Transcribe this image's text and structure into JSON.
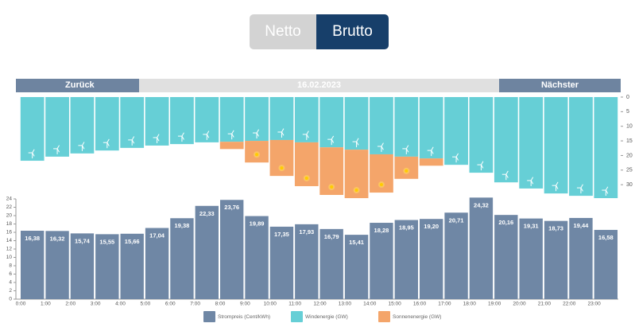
{
  "toggle": [
    "Netto",
    "Brutto"
  ],
  "nav": {
    "prev": "Zurück",
    "date": "16.02.2023",
    "next": "Nächster"
  },
  "chart_data": [
    {
      "type": "bar",
      "stacked": true,
      "orientation": "down",
      "ylim": [
        0,
        35
      ],
      "yticks": [
        0,
        5,
        10,
        15,
        20,
        25,
        30
      ],
      "series": [
        {
          "name": "Windenergie (GW)",
          "color": "#66cfd6",
          "values": [
            21.8,
            20.4,
            19.3,
            18.3,
            17.4,
            16.6,
            16.1,
            15.5,
            15.3,
            15,
            14.7,
            15.5,
            17.2,
            18,
            19.6,
            20.4,
            21,
            23.2,
            25.9,
            29.2,
            31.3,
            33,
            33.8,
            34.6
          ]
        },
        {
          "name": "Sonnenenergie (GW)",
          "color": "#f4a56a",
          "values": [
            0,
            0,
            0,
            0,
            0,
            0,
            0,
            0,
            2.5,
            7.4,
            12.3,
            15,
            16.3,
            16.6,
            13.1,
            7.6,
            2.5,
            0,
            0,
            0,
            0,
            0,
            0,
            0
          ]
        }
      ]
    },
    {
      "type": "bar",
      "categories": [
        "0:00",
        "1:00",
        "2:00",
        "3:00",
        "4:00",
        "5:00",
        "6:00",
        "7:00",
        "8:00",
        "9:00",
        "10:00",
        "11:00",
        "12:00",
        "13:00",
        "14:00",
        "15:00",
        "16:00",
        "17:00",
        "18:00",
        "19:00",
        "20:00",
        "21:00",
        "22:00",
        "23:00"
      ],
      "ylim": [
        0,
        24
      ],
      "yticks": [
        0,
        2,
        4,
        6,
        8,
        10,
        12,
        14,
        16,
        18,
        20,
        22,
        24
      ],
      "series": [
        {
          "name": "Strompreis (Cent/kWh)",
          "color": "#6f87a5",
          "values": [
            16.38,
            16.32,
            15.74,
            15.55,
            15.66,
            17.04,
            19.38,
            22.33,
            23.76,
            19.89,
            17.35,
            17.93,
            16.79,
            15.41,
            18.28,
            18.95,
            19.2,
            20.71,
            24.32,
            20.16,
            19.31,
            18.73,
            19.44,
            16.58
          ],
          "value_labels": [
            "16,38",
            "16,32",
            "15,74",
            "15,55",
            "15,66",
            "17,04",
            "19,38",
            "22,33",
            "23,76",
            "19,89",
            "17,35",
            "17,93",
            "16,79",
            "15,41",
            "18,28",
            "18,95",
            "19,20",
            "20,71",
            "24,32",
            "20,16",
            "19,31",
            "18,73",
            "19,44",
            "16,58"
          ]
        }
      ]
    }
  ]
}
